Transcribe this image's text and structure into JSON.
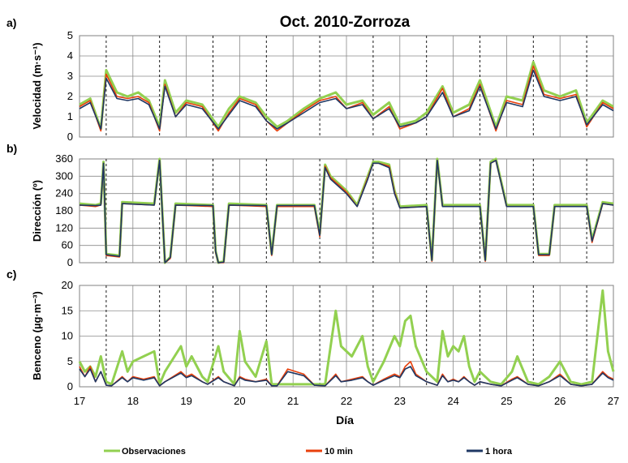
{
  "figure": {
    "title": "Oct. 2010-Zorroza",
    "xlabel": "Día"
  },
  "legend": [
    {
      "name": "Observaciones",
      "color": "#92d050"
    },
    {
      "name": "10 min",
      "color": "#e8400c"
    },
    {
      "name": "1 hora",
      "color": "#1f3864"
    }
  ],
  "chart_data": [
    {
      "type": "line",
      "panel": "a)",
      "ylabel": "Velocidad (m·s⁻¹)",
      "xlim": [
        17,
        27
      ],
      "ylim": [
        0,
        5
      ],
      "xticks": [
        17,
        18,
        19,
        20,
        21,
        22,
        23,
        24,
        25,
        26,
        27
      ],
      "yticks": [
        0,
        1,
        2,
        3,
        4,
        5
      ],
      "dashed_x": [
        17.5,
        18.5,
        19.5,
        20.5,
        21.5,
        22.5,
        23.5,
        24.5,
        25.5,
        26.5
      ],
      "series": [
        {
          "name": "Observaciones",
          "x": [
            17,
            17.2,
            17.4,
            17.5,
            17.7,
            17.9,
            18.1,
            18.3,
            18.5,
            18.6,
            18.8,
            19,
            19.3,
            19.6,
            19.8,
            20,
            20.3,
            20.5,
            20.7,
            20.9,
            21.2,
            21.5,
            21.8,
            22,
            22.3,
            22.5,
            22.8,
            23,
            23.3,
            23.5,
            23.8,
            24,
            24.3,
            24.5,
            24.8,
            25,
            25.3,
            25.5,
            25.7,
            26,
            26.3,
            26.5,
            26.8,
            27
          ],
          "values": [
            1.6,
            1.9,
            0.4,
            3.3,
            2.2,
            2.0,
            2.2,
            1.8,
            0.5,
            2.8,
            1.2,
            1.8,
            1.6,
            0.5,
            1.4,
            2.0,
            1.7,
            1.0,
            0.5,
            0.8,
            1.4,
            1.9,
            2.2,
            1.6,
            1.8,
            1.1,
            1.7,
            0.6,
            0.8,
            1.2,
            2.5,
            1.2,
            1.6,
            2.8,
            0.5,
            2.0,
            1.8,
            3.7,
            2.3,
            2.0,
            2.3,
            0.7,
            1.8,
            1.5
          ]
        },
        {
          "name": "10 min",
          "x": [
            17,
            17.2,
            17.4,
            17.5,
            17.7,
            17.9,
            18.1,
            18.3,
            18.5,
            18.6,
            18.8,
            19,
            19.3,
            19.6,
            19.8,
            20,
            20.3,
            20.5,
            20.7,
            20.9,
            21.2,
            21.5,
            21.8,
            22,
            22.3,
            22.5,
            22.8,
            23,
            23.3,
            23.5,
            23.8,
            24,
            24.3,
            24.5,
            24.8,
            25,
            25.3,
            25.5,
            25.7,
            26,
            26.3,
            26.5,
            26.8,
            27
          ],
          "values": [
            1.5,
            1.8,
            0.3,
            3.1,
            2.0,
            1.9,
            2.0,
            1.7,
            0.3,
            2.6,
            1.0,
            1.7,
            1.5,
            0.3,
            1.2,
            1.9,
            1.6,
            0.8,
            0.3,
            0.7,
            1.3,
            1.8,
            2.0,
            1.4,
            1.7,
            0.9,
            1.5,
            0.4,
            0.7,
            1.0,
            2.4,
            1.0,
            1.4,
            2.6,
            0.3,
            1.8,
            1.6,
            3.5,
            2.1,
            1.9,
            2.1,
            0.5,
            1.7,
            1.4
          ]
        },
        {
          "name": "1 hora",
          "x": [
            17,
            17.2,
            17.4,
            17.5,
            17.7,
            17.9,
            18.1,
            18.3,
            18.5,
            18.6,
            18.8,
            19,
            19.3,
            19.6,
            19.8,
            20,
            20.3,
            20.5,
            20.7,
            20.9,
            21.2,
            21.5,
            21.8,
            22,
            22.3,
            22.5,
            22.8,
            23,
            23.3,
            23.5,
            23.8,
            24,
            24.3,
            24.5,
            24.8,
            25,
            25.3,
            25.5,
            25.7,
            26,
            26.3,
            26.5,
            26.8,
            27
          ],
          "values": [
            1.4,
            1.7,
            0.4,
            2.9,
            1.9,
            1.8,
            1.9,
            1.6,
            0.4,
            2.5,
            1.0,
            1.6,
            1.4,
            0.4,
            1.1,
            1.8,
            1.5,
            0.8,
            0.4,
            0.7,
            1.2,
            1.7,
            1.9,
            1.4,
            1.6,
            0.9,
            1.4,
            0.5,
            0.7,
            1.0,
            2.2,
            1.0,
            1.3,
            2.5,
            0.4,
            1.7,
            1.5,
            3.3,
            2.0,
            1.8,
            2.0,
            0.6,
            1.6,
            1.3
          ]
        }
      ]
    },
    {
      "type": "line",
      "panel": "b)",
      "ylabel": "Dirección (º)",
      "xlim": [
        17,
        27
      ],
      "ylim": [
        0,
        360
      ],
      "xticks": [
        17,
        18,
        19,
        20,
        21,
        22,
        23,
        24,
        25,
        26,
        27
      ],
      "yticks": [
        0,
        60,
        120,
        180,
        240,
        300,
        360
      ],
      "dashed_x": [
        17.5,
        18.5,
        19.5,
        20.5,
        21.5,
        22.5,
        23.5,
        24.5,
        25.5,
        26.5
      ],
      "series": [
        {
          "name": "Observaciones",
          "x": [
            17,
            17.3,
            17.4,
            17.45,
            17.5,
            17.75,
            17.8,
            18.4,
            18.5,
            18.6,
            18.7,
            18.8,
            19.5,
            19.55,
            19.6,
            19.7,
            19.8,
            20.5,
            20.6,
            20.7,
            21.4,
            21.5,
            21.6,
            21.7,
            22.0,
            22.2,
            22.4,
            22.5,
            22.6,
            22.8,
            22.9,
            23.0,
            23.5,
            23.6,
            23.7,
            23.8,
            24.5,
            24.6,
            24.7,
            24.8,
            25.0,
            25.5,
            25.6,
            25.8,
            25.9,
            26.5,
            26.6,
            26.8,
            27
          ],
          "values": [
            205,
            200,
            205,
            350,
            30,
            25,
            210,
            205,
            360,
            0,
            20,
            205,
            200,
            40,
            0,
            5,
            205,
            200,
            30,
            200,
            200,
            100,
            340,
            300,
            250,
            200,
            300,
            350,
            350,
            340,
            250,
            195,
            200,
            10,
            360,
            200,
            200,
            10,
            350,
            360,
            200,
            200,
            30,
            30,
            200,
            200,
            80,
            210,
            205
          ]
        },
        {
          "name": "10 min",
          "x": [
            17,
            17.3,
            17.4,
            17.45,
            17.5,
            17.75,
            17.8,
            18.4,
            18.5,
            18.6,
            18.7,
            18.8,
            19.5,
            19.55,
            19.6,
            19.7,
            19.8,
            20.5,
            20.6,
            20.7,
            21.4,
            21.5,
            21.6,
            21.7,
            22.0,
            22.2,
            22.4,
            22.5,
            22.6,
            22.8,
            22.9,
            23.0,
            23.5,
            23.6,
            23.7,
            23.8,
            24.5,
            24.6,
            24.7,
            24.8,
            25.0,
            25.5,
            25.6,
            25.8,
            25.9,
            26.5,
            26.6,
            26.8,
            27
          ],
          "values": [
            200,
            195,
            200,
            345,
            25,
            20,
            205,
            200,
            355,
            0,
            15,
            200,
            195,
            35,
            0,
            0,
            200,
            195,
            25,
            195,
            195,
            90,
            335,
            295,
            245,
            195,
            295,
            345,
            345,
            335,
            245,
            190,
            195,
            5,
            355,
            195,
            195,
            5,
            345,
            355,
            195,
            195,
            25,
            25,
            195,
            195,
            70,
            205,
            200
          ]
        },
        {
          "name": "1 hora",
          "x": [
            17,
            17.3,
            17.4,
            17.45,
            17.5,
            17.75,
            17.8,
            18.4,
            18.5,
            18.6,
            18.7,
            18.8,
            19.5,
            19.55,
            19.6,
            19.7,
            19.8,
            20.5,
            20.6,
            20.7,
            21.4,
            21.5,
            21.6,
            21.7,
            22.0,
            22.2,
            22.4,
            22.5,
            22.6,
            22.8,
            22.9,
            23.0,
            23.5,
            23.6,
            23.7,
            23.8,
            24.5,
            24.6,
            24.7,
            24.8,
            25.0,
            25.5,
            25.6,
            25.8,
            25.9,
            26.5,
            26.6,
            26.8,
            27
          ],
          "values": [
            200,
            198,
            200,
            345,
            28,
            22,
            205,
            200,
            355,
            0,
            18,
            200,
            198,
            38,
            0,
            2,
            200,
            198,
            28,
            198,
            198,
            95,
            330,
            290,
            240,
            195,
            290,
            345,
            345,
            330,
            240,
            190,
            195,
            8,
            355,
            195,
            195,
            8,
            345,
            355,
            195,
            195,
            28,
            28,
            195,
            195,
            75,
            205,
            200
          ]
        }
      ]
    },
    {
      "type": "line",
      "panel": "c)",
      "ylabel": "Benceno (µg·m⁻³)",
      "xlim": [
        17,
        27
      ],
      "ylim": [
        0,
        20
      ],
      "xticks": [
        17,
        18,
        19,
        20,
        21,
        22,
        23,
        24,
        25,
        26,
        27
      ],
      "yticks": [
        0,
        5,
        10,
        15,
        20
      ],
      "dashed_x": [
        17.5,
        18.5,
        19.5,
        20.5,
        21.5,
        22.5,
        23.5,
        24.5,
        25.5,
        26.5
      ],
      "series": [
        {
          "name": "Observaciones",
          "x": [
            17,
            17.1,
            17.2,
            17.3,
            17.4,
            17.5,
            17.6,
            17.8,
            17.9,
            18.0,
            18.2,
            18.4,
            18.5,
            18.6,
            18.9,
            19.0,
            19.1,
            19.3,
            19.4,
            19.6,
            19.7,
            19.9,
            20.0,
            20.1,
            20.3,
            20.5,
            20.6,
            20.7,
            20.9,
            21.2,
            21.4,
            21.6,
            21.8,
            21.9,
            22.1,
            22.3,
            22.4,
            22.5,
            22.7,
            22.9,
            23.0,
            23.1,
            23.2,
            23.3,
            23.5,
            23.7,
            23.8,
            23.9,
            24.0,
            24.1,
            24.2,
            24.3,
            24.4,
            24.5,
            24.7,
            24.9,
            25.1,
            25.2,
            25.4,
            25.6,
            25.8,
            26.0,
            26.2,
            26.4,
            26.6,
            26.8,
            26.9,
            27
          ],
          "values": [
            5,
            3,
            4,
            2,
            6,
            1,
            0.5,
            7,
            3,
            5,
            6,
            7,
            0.5,
            3,
            8,
            4,
            6,
            2,
            1,
            8,
            3,
            0.5,
            11,
            5,
            2,
            9,
            0.5,
            0.5,
            0.5,
            0.5,
            0.5,
            0.5,
            15,
            8,
            6,
            10,
            4,
            1,
            5,
            10,
            8,
            13,
            14,
            8,
            3,
            1,
            11,
            6,
            8,
            7,
            10,
            4,
            1,
            3,
            1,
            0.5,
            3,
            6,
            1,
            0.5,
            2,
            5,
            1,
            0.5,
            1,
            19,
            7,
            3
          ]
        },
        {
          "name": "10 min",
          "x": [
            17,
            17.1,
            17.2,
            17.3,
            17.4,
            17.5,
            17.6,
            17.8,
            17.9,
            18.0,
            18.2,
            18.4,
            18.5,
            18.6,
            18.9,
            19.0,
            19.1,
            19.3,
            19.4,
            19.6,
            19.7,
            19.9,
            20.0,
            20.1,
            20.3,
            20.5,
            20.6,
            20.7,
            20.9,
            21.2,
            21.4,
            21.6,
            21.8,
            21.9,
            22.1,
            22.3,
            22.4,
            22.5,
            22.7,
            22.9,
            23.0,
            23.1,
            23.2,
            23.3,
            23.5,
            23.7,
            23.8,
            23.9,
            24.0,
            24.1,
            24.2,
            24.3,
            24.4,
            24.5,
            24.7,
            24.9,
            25.1,
            25.2,
            25.4,
            25.6,
            25.8,
            26.0,
            26.2,
            26.4,
            26.6,
            26.8,
            26.9,
            27
          ],
          "values": [
            4,
            2,
            4,
            1,
            3,
            0.3,
            0.2,
            2,
            1,
            2,
            1.5,
            2,
            0.2,
            1,
            3,
            2,
            2.5,
            1,
            0.5,
            2,
            1,
            0.2,
            2,
            1.5,
            1,
            1.5,
            0.2,
            0.2,
            3.5,
            2.5,
            0.3,
            0.2,
            2.5,
            1,
            1.5,
            2,
            1,
            0.3,
            1.5,
            2.5,
            2,
            4,
            5,
            2.5,
            1,
            0.3,
            2.5,
            1,
            1.5,
            1,
            2,
            1,
            0.3,
            1,
            0.5,
            0.2,
            1.5,
            2,
            0.5,
            0.2,
            1,
            2.5,
            0.5,
            0.2,
            0.5,
            3,
            2,
            1.5
          ]
        },
        {
          "name": "1 hora",
          "x": [
            17,
            17.1,
            17.2,
            17.3,
            17.4,
            17.5,
            17.6,
            17.8,
            17.9,
            18.0,
            18.2,
            18.4,
            18.5,
            18.6,
            18.9,
            19.0,
            19.1,
            19.3,
            19.4,
            19.6,
            19.7,
            19.9,
            20.0,
            20.1,
            20.3,
            20.5,
            20.6,
            20.7,
            20.9,
            21.2,
            21.4,
            21.6,
            21.8,
            21.9,
            22.1,
            22.3,
            22.4,
            22.5,
            22.7,
            22.9,
            23.0,
            23.1,
            23.2,
            23.3,
            23.5,
            23.7,
            23.8,
            23.9,
            24.0,
            24.1,
            24.2,
            24.3,
            24.4,
            24.5,
            24.7,
            24.9,
            25.1,
            25.2,
            25.4,
            25.6,
            25.8,
            26.0,
            26.2,
            26.4,
            26.6,
            26.8,
            26.9,
            27
          ],
          "values": [
            3.5,
            2,
            3.5,
            1,
            3,
            0.3,
            0.2,
            1.8,
            1,
            1.8,
            1.3,
            1.8,
            0.2,
            1,
            2.7,
            1.8,
            2.2,
            1,
            0.5,
            1.8,
            1,
            0.2,
            1.8,
            1.3,
            1,
            1.3,
            0.2,
            0.2,
            3,
            2.2,
            0.3,
            0.2,
            2.2,
            1,
            1.3,
            1.8,
            1,
            0.3,
            1.3,
            2.2,
            1.8,
            3.5,
            4,
            2.2,
            1,
            0.3,
            2.2,
            1,
            1.3,
            1,
            1.8,
            1,
            0.3,
            1,
            0.5,
            0.2,
            1.3,
            1.8,
            0.5,
            0.2,
            1,
            2.2,
            0.5,
            0.2,
            0.5,
            2.7,
            1.8,
            1.3
          ]
        }
      ]
    }
  ]
}
